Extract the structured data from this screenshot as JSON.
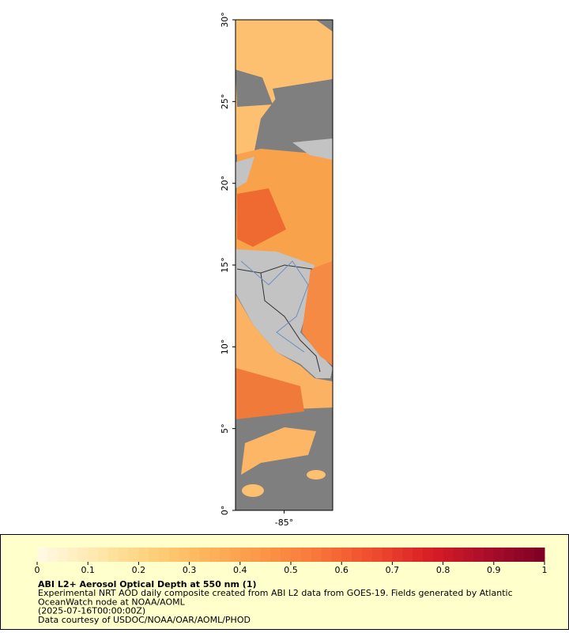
{
  "map": {
    "ylim": [
      0,
      30
    ],
    "yticks": [
      {
        "value": 0,
        "label": "0°"
      },
      {
        "value": 5,
        "label": "5°"
      },
      {
        "value": 10,
        "label": "10°"
      },
      {
        "value": 15,
        "label": "15°"
      },
      {
        "value": 20,
        "label": "20°"
      },
      {
        "value": 25,
        "label": "25°"
      },
      {
        "value": 30,
        "label": "30°"
      }
    ],
    "xlim": [
      -88,
      -82
    ],
    "xticks": [
      {
        "value": -85,
        "label": "-85°"
      }
    ]
  },
  "colorbar": {
    "range": [
      0,
      1
    ],
    "ticks": [
      0,
      0.1,
      0.2,
      0.3,
      0.4,
      0.5,
      0.6,
      0.7,
      0.8,
      0.9,
      1
    ],
    "colors": [
      "#fffbe6",
      "#ffe9b0",
      "#fed17c",
      "#fdb45a",
      "#fb9646",
      "#f8753a",
      "#ee4a2e",
      "#d81d26",
      "#a80d2a",
      "#7d0026"
    ]
  },
  "legend": {
    "title": "ABI L2+ Aerosol Optical Depth at 550 nm (1)",
    "lines": [
      "Experimental NRT AOD daily composite created from ABI L2 data from GOES-19. Fields generated by Atlantic",
      "OceanWatch node at NOAA/AOML",
      "(2025-07-16T00:00:00Z)",
      "Data courtesy of USDOC/NOAA/OAR/AOML/PHOD"
    ]
  }
}
